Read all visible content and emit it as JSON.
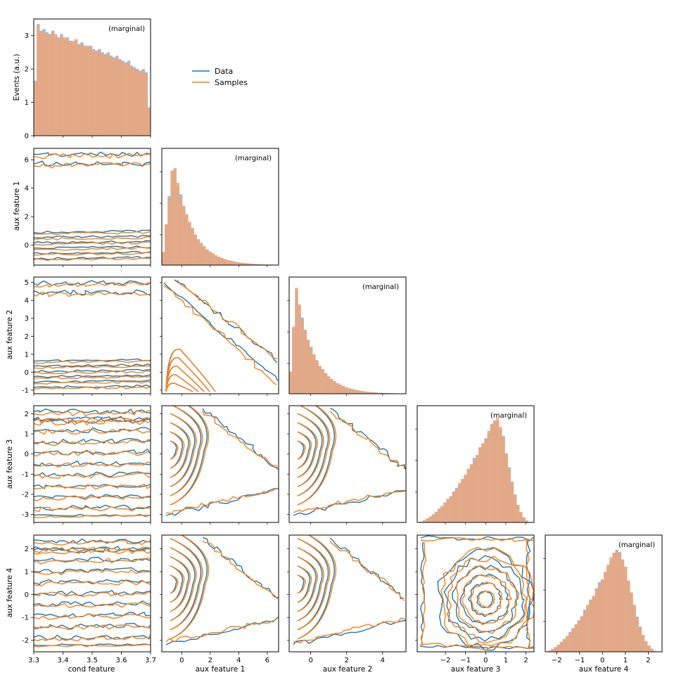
{
  "legend": {
    "placement": "top-right",
    "entries": [
      {
        "label": "Data",
        "color": "#1f77b4"
      },
      {
        "label": "Samples",
        "color": "#ff7f0e"
      }
    ]
  },
  "colors": {
    "data": "#1f77b4",
    "samples": "#ff7f0e",
    "hist_data": "#9dbbd9",
    "hist_samples": "#f0a678"
  },
  "marginal_label": "(marginal)",
  "y_axis_label_top": "Events (a.u.)",
  "chart_data": {
    "type": "pairplot",
    "variables": [
      {
        "label": "cond feature",
        "range": [
          3.3,
          3.7
        ],
        "ticks": [
          3.3,
          3.4,
          3.5,
          3.6,
          3.7
        ]
      },
      {
        "label": "aux feature 1",
        "range": [
          -1.4,
          6.8
        ],
        "ticks": [
          0,
          2,
          4,
          6
        ]
      },
      {
        "label": "aux feature 2",
        "range": [
          -1.2,
          5.3
        ],
        "ticks": [
          -1,
          0,
          1,
          2,
          3,
          4,
          5
        ]
      },
      {
        "label": "aux feature 3",
        "range": [
          -3.4,
          2.4
        ],
        "ticks": [
          -3,
          -2,
          -1,
          0,
          1,
          2
        ]
      },
      {
        "label": "aux feature 4",
        "range": [
          -2.5,
          2.6
        ],
        "ticks": [
          -2,
          -1,
          0,
          1,
          2
        ]
      }
    ],
    "x_ticks_bottom": [
      [
        3.3,
        3.4,
        3.5,
        3.6,
        3.7
      ],
      [
        0,
        2,
        4,
        6
      ],
      [
        0,
        2,
        4
      ],
      [
        -2,
        -1,
        0,
        1,
        2
      ],
      [
        -2,
        -1,
        0,
        1,
        2
      ]
    ],
    "marginal_top": {
      "ylim": [
        0,
        3.5
      ],
      "yticks": [
        0,
        1,
        2,
        3
      ],
      "bins": 40,
      "data_heights": [
        1.65,
        3.35,
        3.15,
        3.2,
        3.1,
        3.05,
        3.15,
        3.0,
        2.95,
        3.05,
        2.9,
        2.95,
        2.85,
        2.8,
        2.85,
        2.75,
        2.8,
        2.7,
        2.65,
        2.7,
        2.6,
        2.55,
        2.6,
        2.5,
        2.45,
        2.5,
        2.4,
        2.35,
        2.4,
        2.3,
        2.25,
        2.2,
        2.25,
        2.1,
        2.05,
        2.0,
        1.95,
        2.0,
        1.9,
        0.85
      ],
      "sample_heights": [
        1.6,
        3.3,
        3.1,
        3.1,
        3.05,
        3.0,
        3.1,
        3.05,
        2.9,
        3.0,
        2.95,
        2.9,
        2.8,
        2.85,
        2.9,
        2.7,
        2.75,
        2.65,
        2.7,
        2.65,
        2.55,
        2.5,
        2.55,
        2.45,
        2.4,
        2.45,
        2.35,
        2.3,
        2.35,
        2.25,
        2.2,
        2.15,
        2.2,
        2.05,
        2.0,
        1.95,
        1.9,
        1.95,
        1.85,
        0.8
      ]
    },
    "marginals_shape": [
      {
        "kind": "exponential",
        "peak": -0.6
      },
      {
        "kind": "exponential",
        "peak": -1.0
      },
      {
        "kind": "skew-left",
        "peak": 0.5
      },
      {
        "kind": "skew-left",
        "peak": 0.6
      }
    ]
  }
}
